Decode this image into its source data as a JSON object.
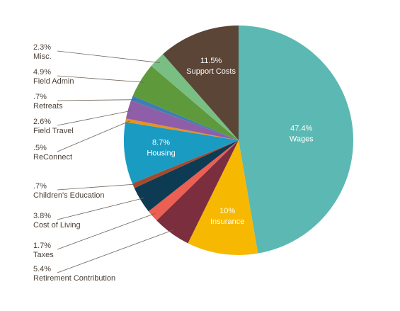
{
  "chart_data": {
    "type": "pie",
    "title": "",
    "slices": [
      {
        "pct_label": "47.4%",
        "name": "Wages",
        "value": 47.4,
        "color": "#5cb8b2",
        "label_pos": "inside"
      },
      {
        "pct_label": "10%",
        "name": "Insurance",
        "value": 10,
        "color": "#f6b800",
        "label_pos": "inside"
      },
      {
        "pct_label": "5.4%",
        "name": "Retirement Contribution",
        "value": 5.4,
        "color": "#7a2e3e",
        "label_pos": "outside"
      },
      {
        "pct_label": "1.7%",
        "name": "Taxes",
        "value": 1.7,
        "color": "#ec5f53",
        "label_pos": "outside"
      },
      {
        "pct_label": "3.8%",
        "name": "Cost of Living",
        "value": 3.8,
        "color": "#0d3b54",
        "label_pos": "outside"
      },
      {
        "pct_label": ".7%",
        "name": "Children's Education",
        "value": 0.7,
        "color": "#a34a2e",
        "label_pos": "outside"
      },
      {
        "pct_label": "8.7%",
        "name": "Housing",
        "value": 8.7,
        "color": "#1a9bc2",
        "label_pos": "inside"
      },
      {
        "pct_label": ".5%",
        "name": "ReConnect",
        "value": 0.5,
        "color": "#e8941c",
        "label_pos": "outside"
      },
      {
        "pct_label": "2.6%",
        "name": "Field Travel",
        "value": 2.6,
        "color": "#8e5fa8",
        "label_pos": "outside"
      },
      {
        "pct_label": ".7%",
        "name": "Retreats",
        "value": 0.7,
        "color": "#3f7fb0",
        "label_pos": "outside"
      },
      {
        "pct_label": "4.9%",
        "name": "Field Admin",
        "value": 4.9,
        "color": "#5e9a3c",
        "label_pos": "outside"
      },
      {
        "pct_label": "2.3%",
        "name": "Misc.",
        "value": 2.3,
        "color": "#79bf83",
        "label_pos": "outside"
      },
      {
        "pct_label": "11.5%",
        "name": "Support Costs",
        "value": 11.5,
        "color": "#5b4536",
        "label_pos": "inside"
      }
    ],
    "start_angle_deg": 90,
    "direction": "clockwise",
    "legend": "none"
  }
}
